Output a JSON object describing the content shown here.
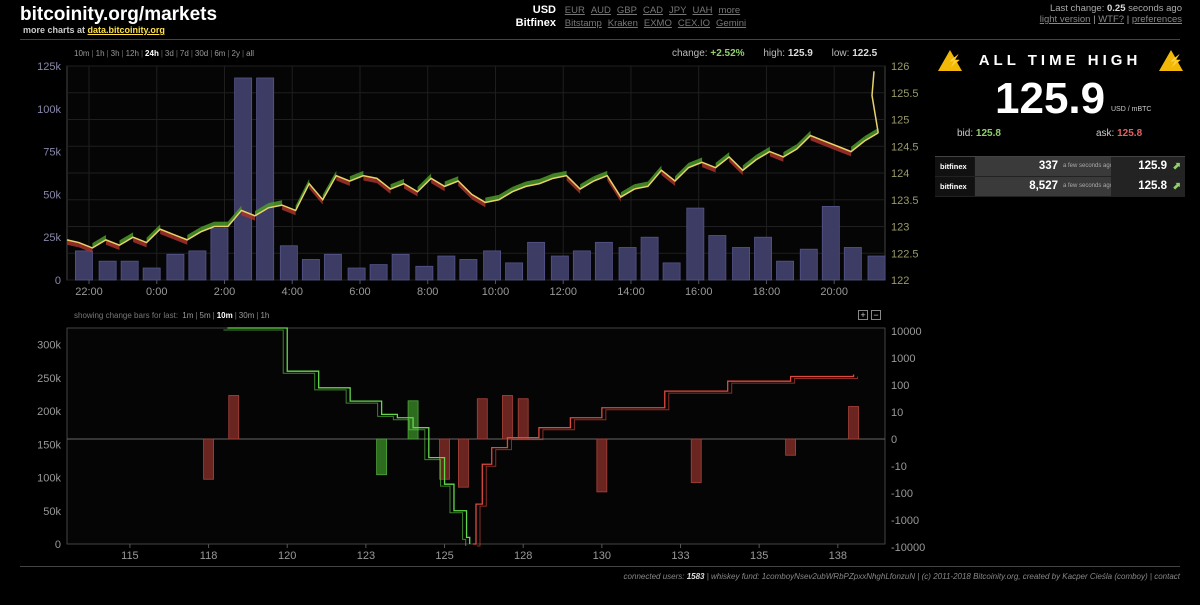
{
  "header": {
    "site_title": "bitcoinity.org/markets",
    "more_charts_prefix": "more charts at ",
    "more_charts_link": "data.bitcoinity.org",
    "currency_selected": "USD",
    "currencies": [
      "EUR",
      "AUD",
      "GBP",
      "CAD",
      "JPY",
      "UAH",
      "more"
    ],
    "exchange_selected": "Bitfinex",
    "exchanges": [
      "Bitstamp",
      "Kraken",
      "EXMO",
      "CEX.IO",
      "Gemini"
    ],
    "last_change_prefix": "Last change: ",
    "last_change_value": "0.25",
    "last_change_suffix": " seconds ago",
    "links": [
      "light version",
      "WTF?",
      "preferences"
    ]
  },
  "price_chart": {
    "periods": [
      "10m",
      "1h",
      "3h",
      "12h",
      "24h",
      "3d",
      "7d",
      "30d",
      "6m",
      "2y",
      "all"
    ],
    "active_period": "24h",
    "change_label": "change:",
    "change_value": "+2.52%",
    "high_label": "high:",
    "high_value": "125.9",
    "low_label": "low:",
    "low_value": "122.5"
  },
  "depth_chart": {
    "change_bars_label": "showing change bars for last:",
    "periods": [
      "1m",
      "5m",
      "10m",
      "30m",
      "1h"
    ],
    "active_period": "10m",
    "zoom_in": "+",
    "zoom_out": "−"
  },
  "ath_panel": {
    "title": "ALL TIME HIGH",
    "warn_glyph": "⚡",
    "price": "125.9",
    "unit": "USD / mBTC",
    "bid_label": "bid:",
    "bid_value": "125.8",
    "ask_label": "ask:",
    "ask_value": "125.8",
    "trades": [
      {
        "exchange": "bitfinex",
        "amount": "337",
        "ago": "a few seconds ago",
        "price": "125.9",
        "arrow": "⬈"
      },
      {
        "exchange": "bitfinex",
        "amount": "8,527",
        "ago": "a few seconds ago",
        "price": "125.8",
        "arrow": "⬈"
      }
    ]
  },
  "footer": {
    "users_label": "connected users: ",
    "users_value": "1583",
    "fund_text": " | whiskey fund: 1comboyNsev2ubWRbPZpxxNhghLfonzuN | (c) 2011-2018 Bitcoinity.org, created by Kacper Cieśla (comboy) | ",
    "contact": "contact"
  },
  "colors": {
    "green": "#4c9a2a",
    "red": "#a8322c",
    "line": "#e7d36a",
    "volume": "#3c3c64",
    "bid_line": "#63d84a",
    "ask_line": "#e0493d"
  },
  "chart_data": [
    {
      "type": "line",
      "title": "",
      "y_left_ticks": [
        "0",
        "25k",
        "50k",
        "75k",
        "100k",
        "125k"
      ],
      "y_left_range": [
        0,
        125000
      ],
      "y_right_ticks": [
        "122",
        "122.5",
        "123",
        "123.5",
        "124",
        "124.5",
        "125",
        "125.5",
        "126"
      ],
      "y_right_range": [
        122,
        126
      ],
      "x_ticks": [
        "22:00",
        "0:00",
        "2:00",
        "4:00",
        "6:00",
        "8:00",
        "10:00",
        "12:00",
        "14:00",
        "16:00",
        "18:00",
        "20:00"
      ],
      "x_tick_hours": [
        0,
        2,
        4,
        6,
        8,
        10,
        12,
        14,
        16,
        18,
        20,
        22
      ],
      "x_range_hours": [
        -0.65,
        23.5
      ],
      "volume_bar_hours": [
        -0.15,
        0.55,
        1.2,
        1.85,
        2.55,
        3.2,
        3.85,
        4.55,
        5.2,
        5.9,
        6.55,
        7.2,
        7.9,
        8.55,
        9.2,
        9.9,
        10.55,
        11.2,
        11.9,
        12.55,
        13.2,
        13.9,
        14.55,
        15.2,
        15.9,
        16.55,
        17.2,
        17.9,
        18.55,
        19.25,
        19.9,
        20.55,
        21.25,
        21.9,
        22.55,
        23.25
      ],
      "volume": [
        17000,
        11000,
        11000,
        7000,
        15000,
        17000,
        30000,
        118000,
        118000,
        20000,
        12000,
        15000,
        7000,
        9000,
        15000,
        8000,
        14000,
        12000,
        17000,
        10000,
        22000,
        14000,
        17000,
        22000,
        19000,
        25000,
        10000,
        42000,
        26000,
        19000,
        25000,
        11000,
        18000,
        43000,
        19000,
        14000
      ],
      "price_hours": [
        -0.65,
        -0.3,
        0.1,
        0.5,
        0.9,
        1.3,
        1.7,
        2.1,
        2.5,
        2.9,
        3.3,
        3.7,
        4.1,
        4.5,
        4.9,
        5.3,
        5.7,
        6.1,
        6.5,
        6.9,
        7.3,
        7.7,
        8.1,
        8.5,
        8.9,
        9.3,
        9.7,
        10.1,
        10.5,
        10.9,
        11.3,
        11.7,
        12.1,
        12.5,
        12.9,
        13.3,
        13.7,
        14.1,
        14.5,
        14.9,
        15.3,
        15.7,
        16.1,
        16.5,
        16.9,
        17.3,
        17.7,
        18.1,
        18.5,
        18.9,
        19.3,
        19.7,
        20.1,
        20.5,
        20.9,
        21.3,
        21.7,
        22.1,
        22.5,
        22.9,
        23.3
      ],
      "price": [
        122.75,
        122.7,
        122.6,
        122.75,
        122.65,
        122.8,
        122.7,
        122.95,
        122.85,
        122.75,
        122.9,
        123.0,
        123.0,
        123.3,
        123.2,
        123.35,
        123.4,
        123.3,
        123.8,
        123.5,
        123.95,
        123.85,
        123.95,
        123.9,
        123.7,
        123.8,
        123.65,
        123.9,
        123.75,
        123.85,
        123.6,
        123.45,
        123.5,
        123.65,
        123.75,
        123.8,
        123.9,
        123.95,
        123.7,
        123.85,
        123.95,
        123.55,
        123.7,
        123.75,
        124.05,
        123.85,
        124.1,
        124.2,
        124.1,
        124.3,
        124.05,
        124.25,
        124.4,
        124.3,
        124.45,
        124.7,
        124.6,
        124.5,
        124.4,
        124.6,
        124.75
      ]
    },
    {
      "type": "line",
      "title": "",
      "y_left_ticks": [
        "0",
        "50k",
        "100k",
        "150k",
        "200k",
        "250k",
        "300k"
      ],
      "y_left_range": [
        0,
        325000
      ],
      "y_right_ticks": [
        "10000",
        "1000",
        "100",
        "10",
        "0",
        "-10",
        "-100",
        "-1000",
        "-10000"
      ],
      "x_ticks": [
        "115",
        "118",
        "120",
        "123",
        "125",
        "128",
        "130",
        "133",
        "135",
        "138"
      ],
      "x_tick_values": [
        115,
        117.5,
        120,
        122.5,
        125,
        127.5,
        130,
        132.5,
        135,
        137.5
      ],
      "x_range": [
        113,
        139
      ],
      "series": [
        {
          "name": "bids",
          "x": [
            118.1,
            119.0,
            120.0,
            121.0,
            122.0,
            123.0,
            123.5,
            124.0,
            124.5,
            125.0,
            125.3,
            125.7,
            125.8
          ],
          "y": [
            325000,
            325000,
            260000,
            235000,
            215000,
            195000,
            190000,
            175000,
            130000,
            90000,
            50000,
            10000,
            0
          ]
        },
        {
          "name": "asks",
          "x": [
            125.9,
            126.0,
            126.2,
            126.5,
            127.0,
            128.0,
            129.0,
            130.0,
            132.0,
            134.0,
            136.0,
            138.0
          ],
          "y": [
            0,
            60000,
            120000,
            145000,
            160000,
            175000,
            190000,
            205000,
            230000,
            245000,
            252000,
            255000
          ]
        }
      ],
      "change_bars": {
        "x": [
          117.5,
          118.3,
          123.0,
          124.0,
          125.0,
          125.6,
          126.2,
          127.0,
          127.5,
          130.0,
          133.0,
          136.0,
          138.0
        ],
        "y": [
          -30,
          40,
          -20,
          25,
          -30,
          -60,
          30,
          40,
          30,
          -90,
          -40,
          -3,
          15
        ]
      }
    }
  ]
}
